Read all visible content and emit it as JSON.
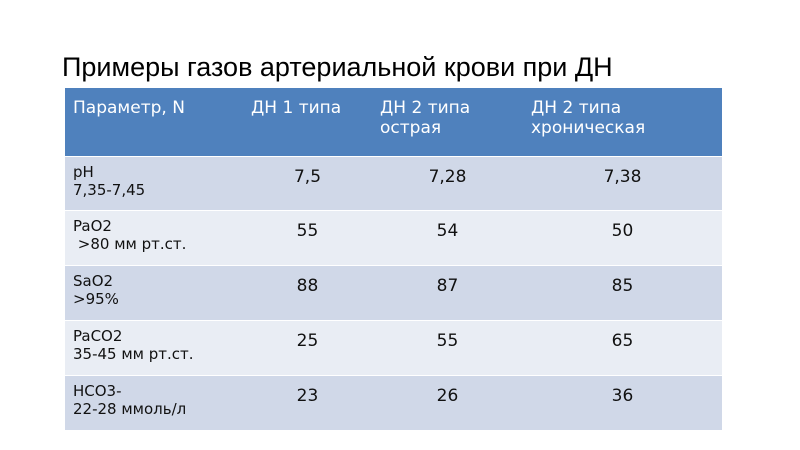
{
  "title": "Примеры газов артериальной крови при ДН",
  "table": {
    "header": [
      "Параметр, N",
      "ДН 1 типа",
      "ДН 2 типа острая",
      "ДН 2 типа хроническая"
    ],
    "rows": [
      {
        "param": "pH",
        "norm": "7,35-7,45",
        "values": [
          "7,5",
          "7,28",
          "7,38"
        ]
      },
      {
        "param": "PaO2",
        "norm": " >80 мм рт.ст.",
        "values": [
          "55",
          "54",
          "50"
        ]
      },
      {
        "param": "SaO2",
        "norm": ">95%",
        "values": [
          "88",
          "87",
          "85"
        ]
      },
      {
        "param": "PaCO2",
        "norm": "35-45 мм рт.ст.",
        "values": [
          "25",
          "55",
          "65"
        ]
      },
      {
        "param": "HCO3-",
        "norm": "22-28 ммоль/л",
        "values": [
          "23",
          "26",
          "36"
        ]
      }
    ]
  }
}
